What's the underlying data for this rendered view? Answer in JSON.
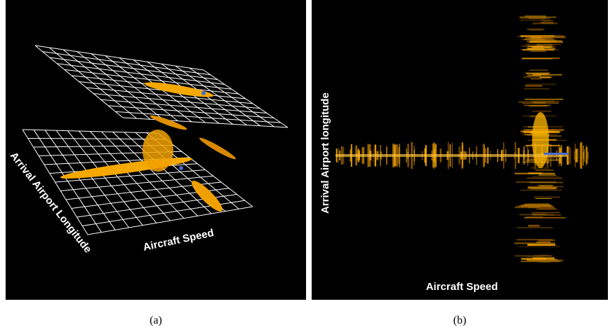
{
  "panels": [
    {
      "x_label": "Aircraft Speed",
      "y_label": "Arrival Airport Longitude",
      "caption": "(a)"
    },
    {
      "x_label": "Aircraft Speed",
      "y_label": "Arrival Airport longitude",
      "caption": "(b)"
    }
  ]
}
